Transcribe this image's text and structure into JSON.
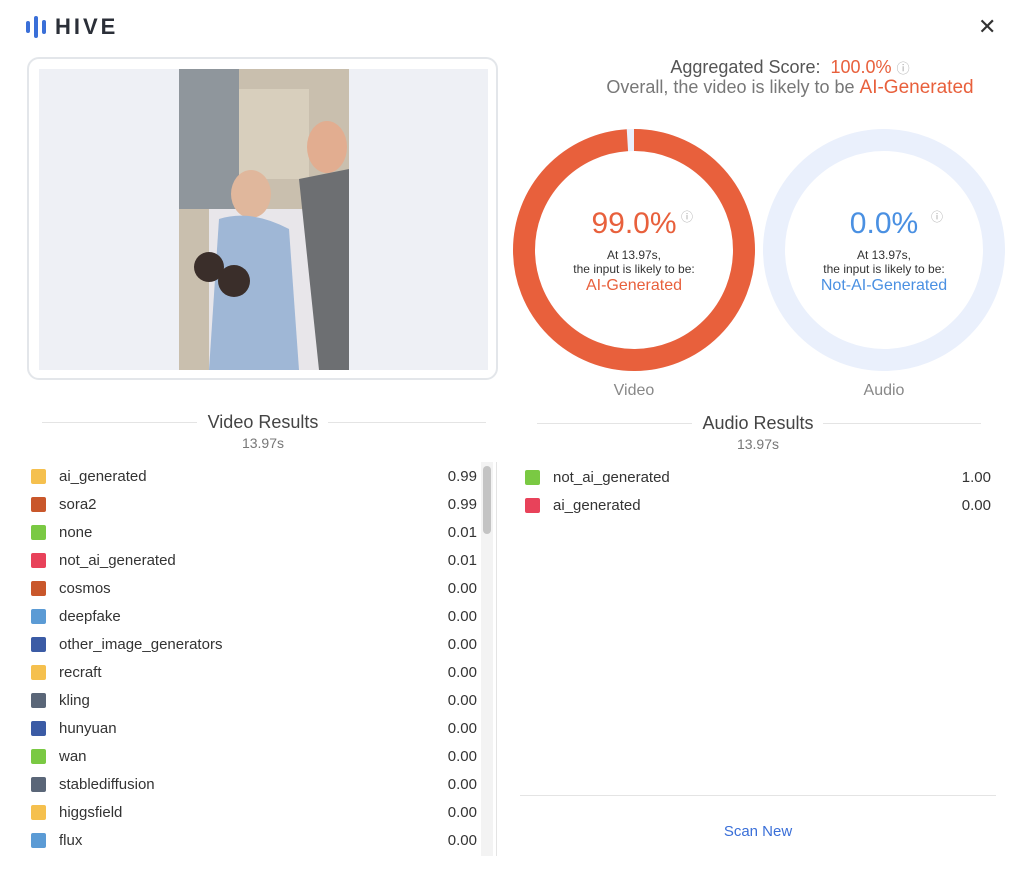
{
  "header": {
    "logo": "HIVE"
  },
  "summary": {
    "aggregated_label": "Aggregated Score:",
    "aggregated_value": "100.0%",
    "overall_text": "Overall, the video is likely to be",
    "overall_verdict": "AI-Generated"
  },
  "donuts": [
    {
      "score": {
        "value": 99.0,
        "label": "99.0%"
      },
      "line1": "At 13.97s,",
      "line2": "the input is likely to be:",
      "verdict": "AI-Generated",
      "caption": "Video",
      "color": "#e8603c"
    },
    {
      "score": {
        "value": 0.0,
        "label": "0.0%"
      },
      "line1": "At 13.97s,",
      "line2": "the input is likely to be:",
      "verdict": "Not-AI-Generated",
      "caption": "Audio",
      "color": "#4a90e2"
    }
  ],
  "video_results": {
    "title": "Video Results",
    "time": "13.97s",
    "rows": [
      {
        "label": "ai_generated",
        "value": "0.99",
        "color": "#f5c04e"
      },
      {
        "label": "sora2",
        "value": "0.99",
        "color": "#c9572b"
      },
      {
        "label": "none",
        "value": "0.01",
        "color": "#7ac943"
      },
      {
        "label": "not_ai_generated",
        "value": "0.01",
        "color": "#e8425a"
      },
      {
        "label": "cosmos",
        "value": "0.00",
        "color": "#c9572b"
      },
      {
        "label": "deepfake",
        "value": "0.00",
        "color": "#5b9bd5"
      },
      {
        "label": "other_image_generators",
        "value": "0.00",
        "color": "#3b5ba5"
      },
      {
        "label": "recraft",
        "value": "0.00",
        "color": "#f5c04e"
      },
      {
        "label": "kling",
        "value": "0.00",
        "color": "#5a6678"
      },
      {
        "label": "hunyuan",
        "value": "0.00",
        "color": "#3b5ba5"
      },
      {
        "label": "wan",
        "value": "0.00",
        "color": "#7ac943"
      },
      {
        "label": "stablediffusion",
        "value": "0.00",
        "color": "#5a6678"
      },
      {
        "label": "higgsfield",
        "value": "0.00",
        "color": "#f5c04e"
      },
      {
        "label": "flux",
        "value": "0.00",
        "color": "#5b9bd5"
      }
    ]
  },
  "audio_results": {
    "title": "Audio Results",
    "time": "13.97s",
    "rows": [
      {
        "label": "not_ai_generated",
        "value": "1.00",
        "color": "#7ac943"
      },
      {
        "label": "ai_generated",
        "value": "0.00",
        "color": "#e8425a"
      }
    ]
  },
  "actions": {
    "scan_new": "Scan New"
  }
}
